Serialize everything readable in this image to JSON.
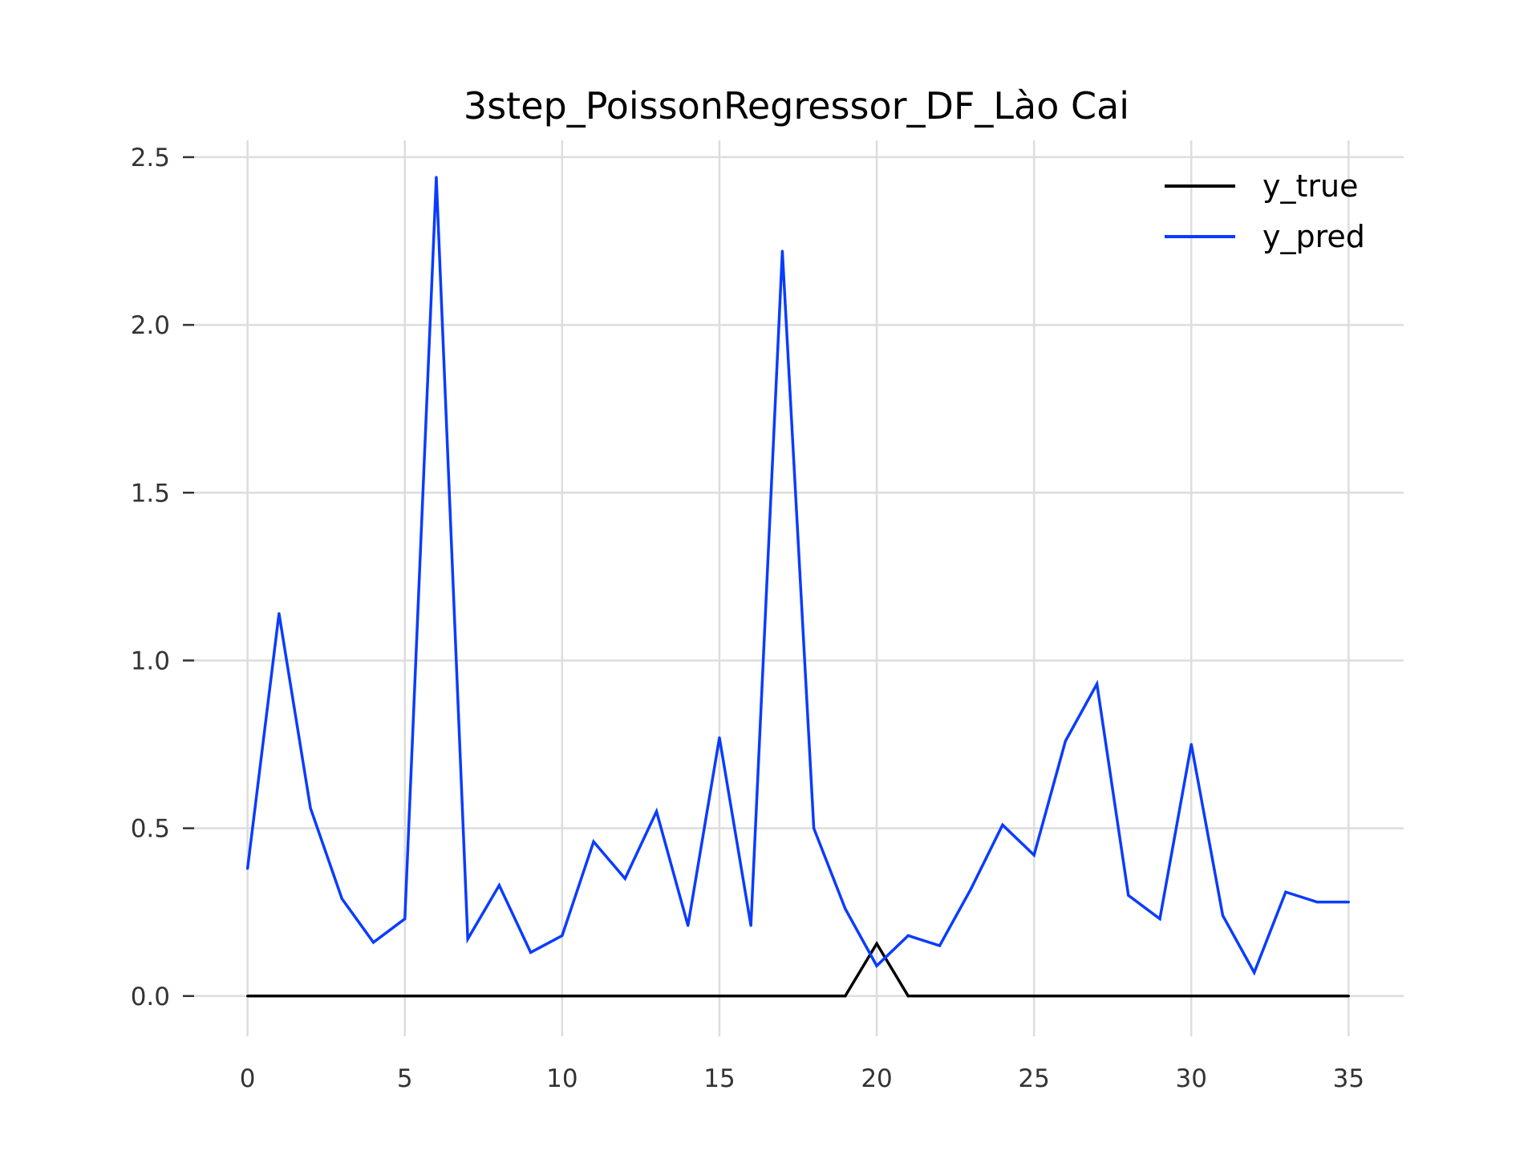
{
  "chart_data": {
    "type": "line",
    "title": "3step_PoissonRegressor_DF_Lào Cai",
    "xlabel": "",
    "ylabel": "",
    "xlim": [
      -1.75,
      36.75
    ],
    "ylim": [
      -0.12,
      2.55
    ],
    "xticks": [
      0,
      5,
      10,
      15,
      20,
      25,
      30,
      35
    ],
    "yticks": [
      0.0,
      0.5,
      1.0,
      1.5,
      2.0,
      2.5
    ],
    "xtick_labels": [
      "0",
      "5",
      "10",
      "15",
      "20",
      "25",
      "30",
      "35"
    ],
    "ytick_labels": [
      "0.0",
      "0.5",
      "1.0",
      "1.5",
      "2.0",
      "2.5"
    ],
    "grid": true,
    "legend_position": "top-right",
    "x": [
      0,
      1,
      2,
      3,
      4,
      5,
      6,
      7,
      8,
      9,
      10,
      11,
      12,
      13,
      14,
      15,
      16,
      17,
      18,
      19,
      20,
      21,
      22,
      23,
      24,
      25,
      26,
      27,
      28,
      29,
      30,
      31,
      32,
      33,
      34,
      35
    ],
    "series": [
      {
        "name": "y_true",
        "color": "#000000",
        "values": [
          0,
          0,
          0,
          0,
          0,
          0,
          0,
          0,
          0,
          0,
          0,
          0,
          0,
          0,
          0,
          0,
          0,
          0,
          0,
          0,
          0.156,
          0,
          0,
          0,
          0,
          0,
          0,
          0,
          0,
          0,
          0,
          0,
          0,
          0,
          0,
          0
        ]
      },
      {
        "name": "y_pred",
        "color": "#0a3cff",
        "values": [
          0.38,
          1.14,
          0.56,
          0.29,
          0.16,
          0.23,
          2.44,
          0.17,
          0.33,
          0.13,
          0.18,
          0.46,
          0.35,
          0.55,
          0.21,
          0.77,
          0.21,
          2.22,
          0.5,
          0.26,
          0.09,
          0.18,
          0.15,
          0.32,
          0.51,
          0.42,
          0.76,
          0.93,
          0.3,
          0.23,
          0.75,
          0.24,
          0.07,
          0.31,
          0.28,
          0.28
        ]
      }
    ]
  }
}
